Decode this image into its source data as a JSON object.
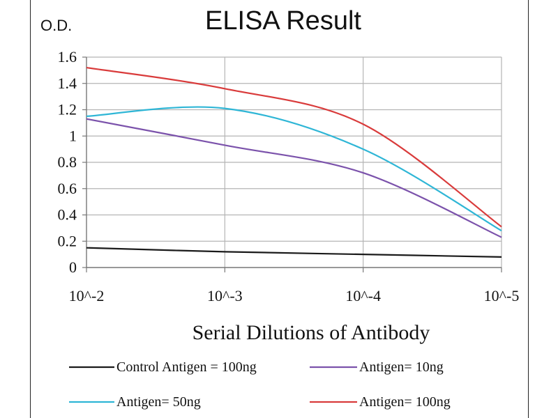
{
  "chart_data": {
    "type": "line",
    "title": "ELISA Result",
    "ylabel": "O.D.",
    "xlabel": "Serial Dilutions  of Antibody",
    "x": [
      "10^-2",
      "10^-3",
      "10^-4",
      "10^-5"
    ],
    "ylim": [
      0,
      1.6
    ],
    "yticks": [
      "0",
      "0.2",
      "0.4",
      "0.6",
      "0.8",
      "1",
      "1.2",
      "1.4",
      "1.6"
    ],
    "grid": true,
    "legend_position": "bottom",
    "series": [
      {
        "name": "Control Antigen = 100ng",
        "color": "#1a1a1a",
        "values": [
          0.15,
          0.12,
          0.1,
          0.08
        ]
      },
      {
        "name": "Antigen= 10ng",
        "color": "#7b52ab",
        "values": [
          1.13,
          0.93,
          0.72,
          0.23
        ]
      },
      {
        "name": "Antigen= 50ng",
        "color": "#2fb6d6",
        "values": [
          1.15,
          1.21,
          0.9,
          0.28
        ]
      },
      {
        "name": "Antigen= 100ng",
        "color": "#d93b3b",
        "values": [
          1.52,
          1.36,
          1.09,
          0.31
        ]
      }
    ]
  }
}
